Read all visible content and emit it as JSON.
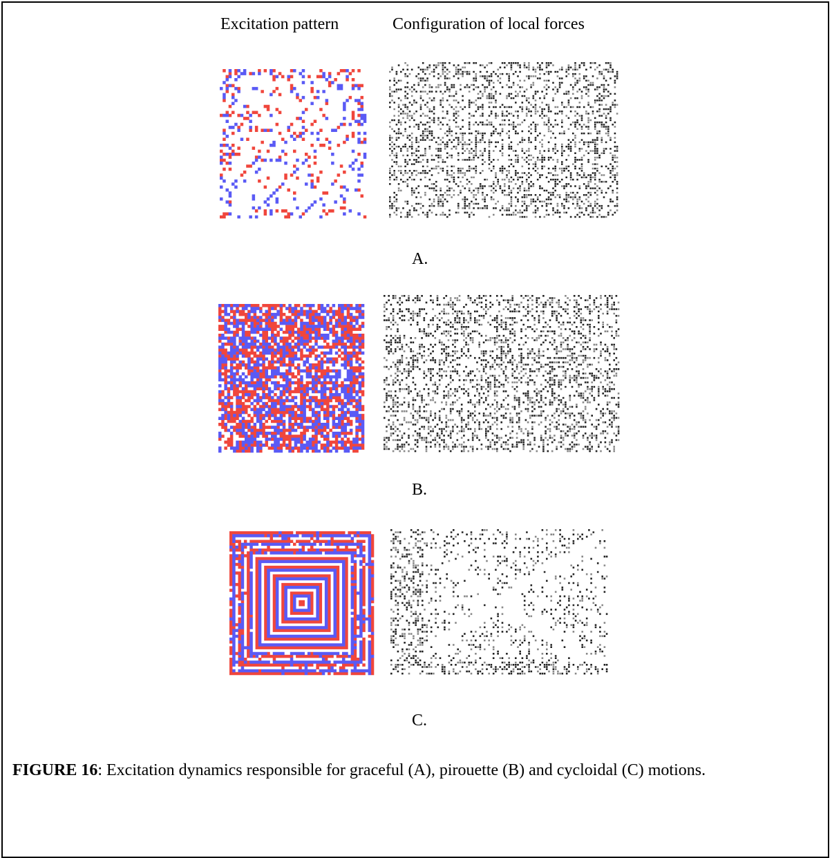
{
  "header": {
    "left": "Excitation pattern",
    "right": "Configuration of local forces"
  },
  "panels": [
    {
      "label": "A."
    },
    {
      "label": "B."
    },
    {
      "label": "C."
    }
  ],
  "caption": {
    "label": "FIGURE 16",
    "text": ": Excitation dynamics responsible for graceful (A), pirouette (B) and cycloidal (C) motions."
  }
}
